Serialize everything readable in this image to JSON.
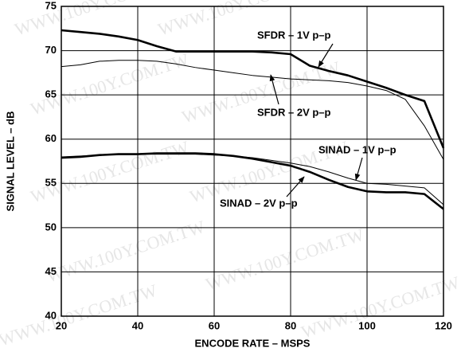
{
  "chart_data": {
    "type": "line",
    "watermark": "WWW.100Y.COM.TW",
    "xlabel": "ENCODE RATE – MSPS",
    "ylabel": "SIGNAL LEVEL – dB",
    "x": [
      20,
      25,
      30,
      35,
      40,
      45,
      50,
      55,
      60,
      65,
      70,
      75,
      80,
      85,
      90,
      95,
      100,
      105,
      110,
      115,
      120
    ],
    "series": [
      {
        "name": "SFDR – 1V p–p",
        "color": "#000000",
        "width": 2.6,
        "values": [
          72.3,
          72.1,
          71.9,
          71.6,
          71.2,
          70.5,
          69.9,
          69.9,
          69.9,
          69.9,
          69.9,
          69.8,
          69.6,
          68.3,
          67.7,
          67.2,
          66.5,
          65.8,
          65.0,
          64.3,
          59.0
        ]
      },
      {
        "name": "SFDR – 2V p–p",
        "color": "#000000",
        "width": 1,
        "values": [
          68.2,
          68.4,
          68.8,
          68.9,
          68.9,
          68.8,
          68.5,
          68.1,
          67.8,
          67.5,
          67.2,
          67.0,
          66.8,
          66.7,
          66.6,
          66.4,
          66.0,
          65.5,
          64.5,
          61.5,
          57.7
        ]
      },
      {
        "name": "SINAD – 1V p–p",
        "color": "#000000",
        "width": 2.6,
        "values": [
          57.9,
          58.0,
          58.2,
          58.3,
          58.3,
          58.4,
          58.4,
          58.4,
          58.3,
          58.1,
          57.8,
          57.4,
          57.0,
          56.3,
          55.4,
          54.6,
          54.1,
          54.0,
          54.0,
          53.8,
          52.1
        ]
      },
      {
        "name": "SINAD – 2V p–p",
        "color": "#000000",
        "width": 1,
        "values": [
          58.0,
          58.1,
          58.2,
          58.3,
          58.3,
          58.3,
          58.3,
          58.3,
          58.2,
          58.1,
          57.9,
          57.6,
          57.3,
          56.9,
          56.3,
          55.6,
          55.0,
          54.9,
          54.7,
          54.5,
          52.6
        ]
      }
    ],
    "xlim": [
      20,
      120
    ],
    "xticks": [
      20,
      40,
      60,
      80,
      100,
      120
    ],
    "ylim": [
      40,
      75
    ],
    "yticks": [
      40,
      45,
      50,
      55,
      60,
      65,
      70,
      75
    ],
    "grid": true
  }
}
